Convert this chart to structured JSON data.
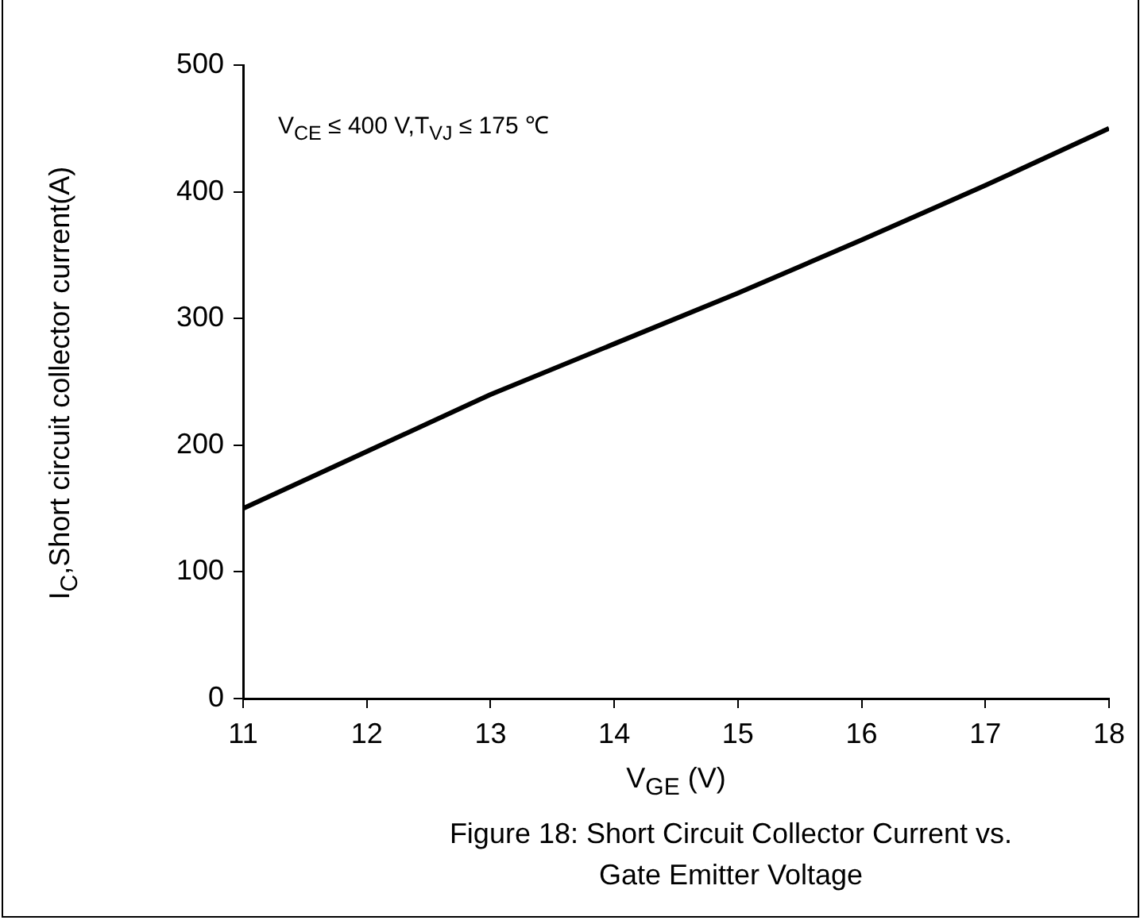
{
  "chart_data": {
    "type": "line",
    "xlabel": "V$_{GE}$ (V)",
    "ylabel": "I$_{C}$,Short circuit collector current(A)",
    "x": [
      11,
      12,
      13,
      14,
      15,
      16,
      17,
      18
    ],
    "series": [
      {
        "color": "#000000",
        "values": [
          150,
          195,
          240,
          280,
          320,
          362,
          405,
          450
        ]
      }
    ],
    "xlim": [
      11,
      18
    ],
    "xticks": [
      11,
      12,
      13,
      14,
      15,
      16,
      17,
      18
    ],
    "ylim": [
      0,
      500
    ],
    "yticks": [
      0,
      100,
      200,
      300,
      400,
      500
    ],
    "grid": false,
    "legend": false,
    "marker": "none",
    "line_style": "solid",
    "annotations": [
      "V$_{CE}$ ≤ 400 V,T$_{VJ}$ ≤ 175 ℃",
      "Figure 18: Short Circuit Collector Current vs. Gate Emitter Voltage"
    ]
  }
}
